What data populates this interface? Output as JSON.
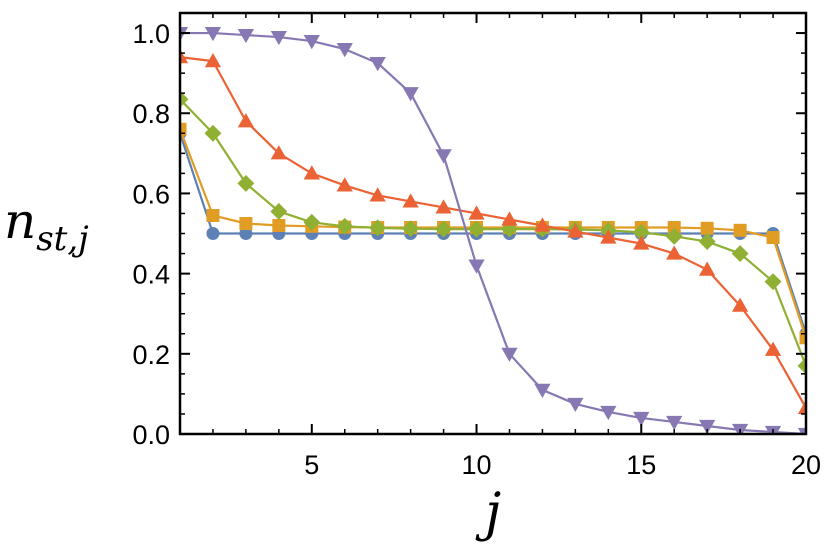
{
  "chart_data": {
    "type": "line",
    "xlabel": "j",
    "ylabel": "n",
    "ylabel_subscript": "st,j",
    "xlim": [
      1,
      20
    ],
    "ylim": [
      0,
      1.05
    ],
    "xticks": [
      5,
      10,
      15,
      20
    ],
    "xtick_labels": [
      "5",
      "10",
      "15",
      "20"
    ],
    "yticks": [
      0.0,
      0.2,
      0.4,
      0.6,
      0.8,
      1.0
    ],
    "ytick_labels": [
      "0.0",
      "0.2",
      "0.4",
      "0.6",
      "0.8",
      "1.0"
    ],
    "grid": false,
    "x": [
      1,
      2,
      3,
      4,
      5,
      6,
      7,
      8,
      9,
      10,
      11,
      12,
      13,
      14,
      15,
      16,
      17,
      18,
      19,
      20
    ],
    "series": [
      {
        "color": "#5E81B5",
        "marker": "circle",
        "values": [
          0.75,
          0.5,
          0.5,
          0.5,
          0.5,
          0.5,
          0.5,
          0.5,
          0.5,
          0.5,
          0.5,
          0.5,
          0.5,
          0.5,
          0.5,
          0.5,
          0.5,
          0.5,
          0.5,
          0.25
        ]
      },
      {
        "color": "#E19C24",
        "marker": "square",
        "values": [
          0.76,
          0.545,
          0.525,
          0.52,
          0.518,
          0.516,
          0.515,
          0.515,
          0.515,
          0.515,
          0.515,
          0.515,
          0.515,
          0.515,
          0.515,
          0.515,
          0.513,
          0.508,
          0.49,
          0.24
        ]
      },
      {
        "color": "#8FB032",
        "marker": "diamond",
        "values": [
          0.835,
          0.75,
          0.625,
          0.555,
          0.528,
          0.518,
          0.514,
          0.512,
          0.511,
          0.511,
          0.511,
          0.511,
          0.51,
          0.508,
          0.503,
          0.493,
          0.48,
          0.45,
          0.38,
          0.17
        ]
      },
      {
        "color": "#EB6235",
        "marker": "triangle-up",
        "values": [
          0.94,
          0.93,
          0.78,
          0.7,
          0.65,
          0.62,
          0.595,
          0.58,
          0.565,
          0.55,
          0.535,
          0.52,
          0.505,
          0.49,
          0.475,
          0.45,
          0.41,
          0.32,
          0.21,
          0.065
        ]
      },
      {
        "color": "#8778B3",
        "marker": "triangle-down",
        "values": [
          1.0,
          1.0,
          0.995,
          0.99,
          0.98,
          0.96,
          0.925,
          0.85,
          0.695,
          0.42,
          0.2,
          0.11,
          0.075,
          0.055,
          0.04,
          0.03,
          0.02,
          0.01,
          0.005,
          0.0
        ]
      }
    ]
  }
}
